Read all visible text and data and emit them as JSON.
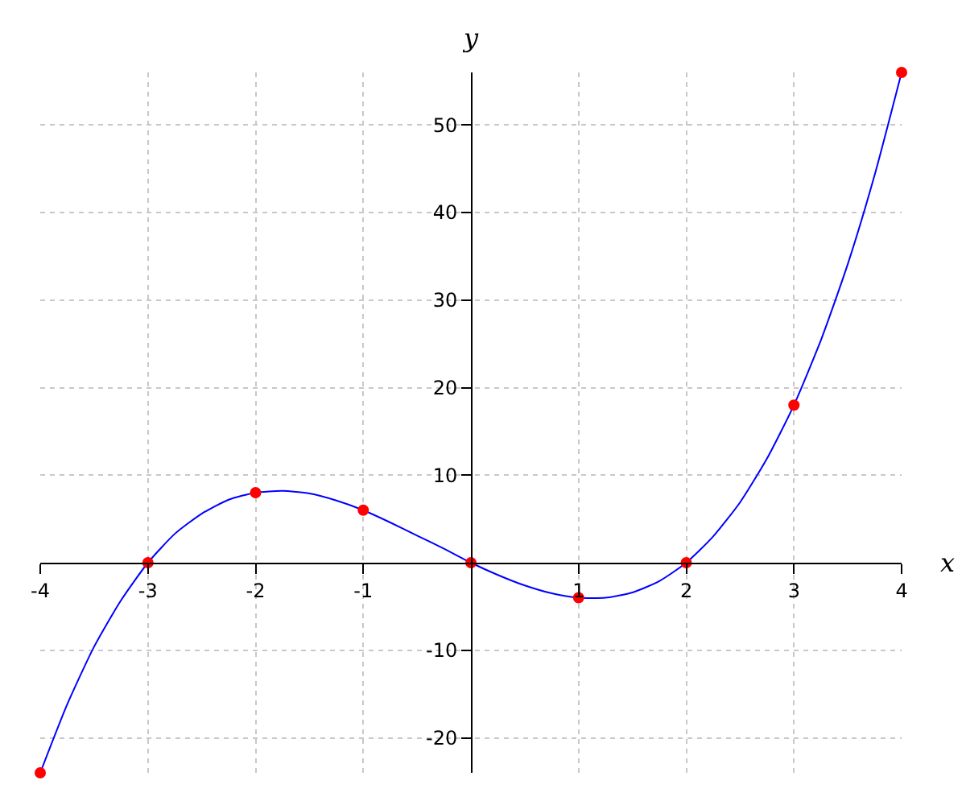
{
  "chart_data": {
    "type": "line",
    "xlabel": "x",
    "ylabel": "y",
    "xlim": [
      -4,
      4
    ],
    "ylim": [
      -24,
      56
    ],
    "xticks": [
      -4,
      -3,
      -2,
      -1,
      1,
      2,
      3,
      4
    ],
    "yticks": [
      -20,
      -10,
      10,
      20,
      30,
      40,
      50
    ],
    "grid": true,
    "series": [
      {
        "color": "#0000ff",
        "marker": "none",
        "x": [
          -4,
          -3.75,
          -3.5,
          -3.25,
          -3,
          -2.75,
          -2.5,
          -2.25,
          -2,
          -1.75,
          -1.5,
          -1.25,
          -1,
          -0.75,
          -0.5,
          -0.25,
          0,
          0.25,
          0.5,
          0.75,
          1,
          1.25,
          1.5,
          1.75,
          2,
          2.25,
          2.5,
          2.75,
          3,
          3.25,
          3.5,
          3.75,
          4
        ],
        "values": [
          -24,
          -16.2,
          -9.6,
          -4.3,
          0,
          3.3,
          5.6,
          7.2,
          8,
          8.2,
          7.9,
          7.1,
          6,
          4.6,
          3.1,
          1.6,
          0,
          -1.4,
          -2.6,
          -3.5,
          -4,
          -4,
          -3.4,
          -2.1,
          0,
          3,
          6.9,
          11.9,
          18,
          25.4,
          34.1,
          44.3,
          56
        ]
      },
      {
        "type": "scatter",
        "color": "#ff0000",
        "marker": "circle",
        "x": [
          -4,
          -3,
          -2,
          -1,
          0,
          1,
          2,
          3,
          4
        ],
        "values": [
          -24,
          0,
          8,
          6,
          0,
          -4,
          0,
          18,
          56
        ]
      }
    ]
  }
}
